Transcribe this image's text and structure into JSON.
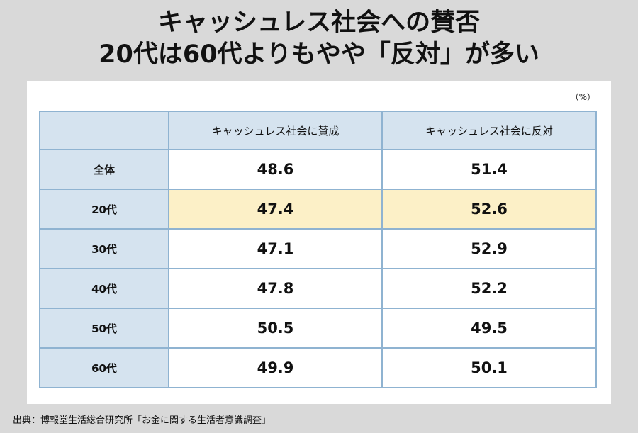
{
  "title_line1": "キャッシュレス社会への賛否",
  "title_line2": "20代は60代よりもやや「反対」が多い",
  "unit": "（%）",
  "source": "出典：博報堂生活総合研究所「お金に関する生活者意識調査」",
  "colors": {
    "background": "#d9d9d9",
    "header_fill": "#d5e3ef",
    "border": "#8fb3d1",
    "highlight_row": "#fcf0c7"
  },
  "chart_data": {
    "type": "table",
    "title": "キャッシュレス社会への賛否 20代は60代よりもやや「反対」が多い",
    "unit": "%",
    "columns": [
      "",
      "キャッシュレス社会に賛成",
      "キャッシュレス社会に反対"
    ],
    "rows": [
      {
        "label": "全体",
        "values": [
          "48.6",
          "51.4"
        ],
        "highlight": false
      },
      {
        "label": "20代",
        "values": [
          "47.4",
          "52.6"
        ],
        "highlight": true
      },
      {
        "label": "30代",
        "values": [
          "47.1",
          "52.9"
        ],
        "highlight": false
      },
      {
        "label": "40代",
        "values": [
          "47.8",
          "52.2"
        ],
        "highlight": false
      },
      {
        "label": "50代",
        "values": [
          "50.5",
          "49.5"
        ],
        "highlight": false
      },
      {
        "label": "60代",
        "values": [
          "49.9",
          "50.1"
        ],
        "highlight": false
      }
    ]
  }
}
